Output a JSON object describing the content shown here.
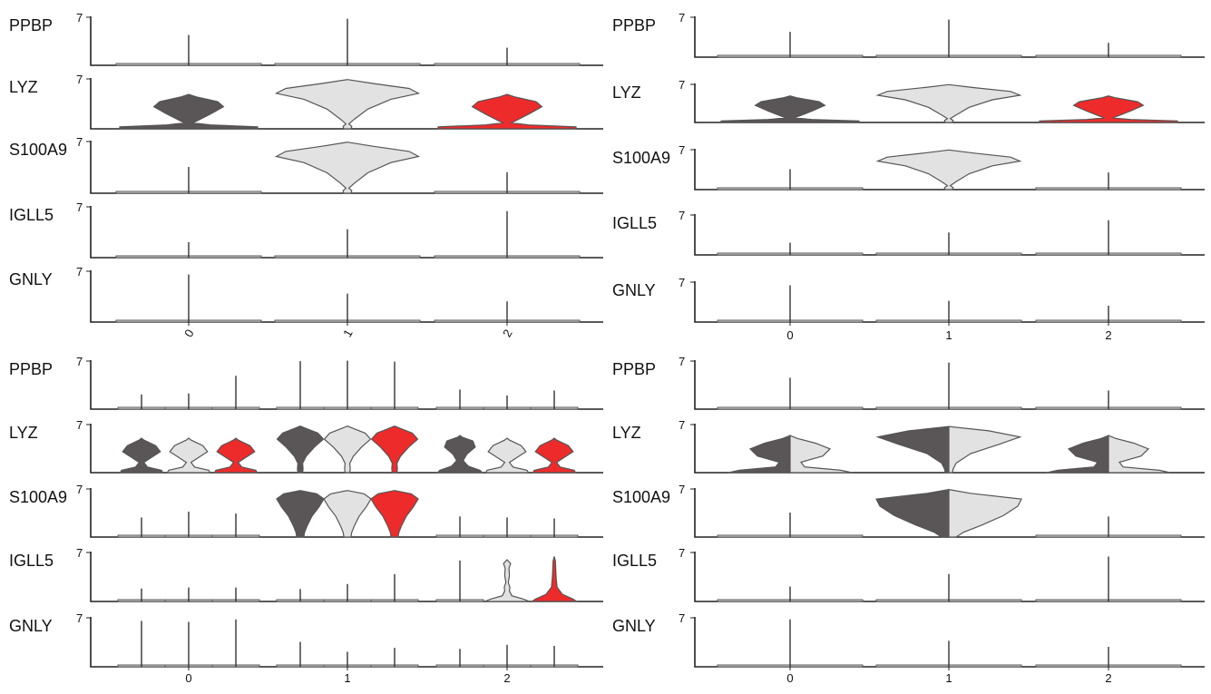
{
  "colors": {
    "group_a": "#5a5557",
    "group_b": "#e2e2e2",
    "group_c": "#ee2b2b"
  },
  "chart_data": [
    {
      "type": "violin",
      "genes": [
        "PPBP",
        "LYZ",
        "S100A9",
        "IGLL5",
        "GNLY"
      ],
      "categories": [
        "0",
        "1",
        "2"
      ],
      "x_tick_rotation": "rotated",
      "ymax_label": "7",
      "split": false,
      "violins": {
        "PPBP": {
          "0": {
            "mode": "spike",
            "h": 0.62
          },
          "1": {
            "mode": "spike",
            "h": 0.95
          },
          "2": {
            "mode": "spike",
            "h": 0.36
          }
        },
        "LYZ": {
          "0": {
            "mode": "low",
            "color": "group_a"
          },
          "1": {
            "mode": "high",
            "color": "group_b"
          },
          "2": {
            "mode": "low",
            "color": "group_c"
          }
        },
        "S100A9": {
          "0": {
            "mode": "spike",
            "h": 0.5
          },
          "1": {
            "mode": "high",
            "color": "group_b"
          },
          "2": {
            "mode": "spike",
            "h": 0.4
          }
        },
        "IGLL5": {
          "0": {
            "mode": "spike",
            "h": 0.3
          },
          "1": {
            "mode": "spike",
            "h": 0.55
          },
          "2": {
            "mode": "spike",
            "h": 0.9
          }
        },
        "GNLY": {
          "0": {
            "mode": "spike",
            "h": 0.92
          },
          "1": {
            "mode": "spike",
            "h": 0.55
          },
          "2": {
            "mode": "spike",
            "h": 0.4
          }
        }
      }
    },
    {
      "type": "violin",
      "genes": [
        "PPBP",
        "LYZ",
        "S100A9",
        "IGLL5",
        "GNLY"
      ],
      "categories": [
        "0",
        "1",
        "2"
      ],
      "x_tick_rotation": "none",
      "ymax_label": "7",
      "split": false,
      "violins": {
        "PPBP": {
          "0": {
            "mode": "spike",
            "h": 0.62
          },
          "1": {
            "mode": "spike",
            "h": 0.92
          },
          "2": {
            "mode": "spike",
            "h": 0.35
          }
        },
        "LYZ": {
          "0": {
            "mode": "low",
            "color": "group_a"
          },
          "1": {
            "mode": "high",
            "color": "group_b"
          },
          "2": {
            "mode": "low",
            "color": "group_c"
          }
        },
        "S100A9": {
          "0": {
            "mode": "spike",
            "h": 0.5
          },
          "1": {
            "mode": "high",
            "color": "group_b"
          },
          "2": {
            "mode": "spike",
            "h": 0.42
          }
        },
        "IGLL5": {
          "0": {
            "mode": "spike",
            "h": 0.3
          },
          "1": {
            "mode": "spike",
            "h": 0.55
          },
          "2": {
            "mode": "spike",
            "h": 0.85
          }
        },
        "GNLY": {
          "0": {
            "mode": "spike",
            "h": 0.9
          },
          "1": {
            "mode": "spike",
            "h": 0.52
          },
          "2": {
            "mode": "spike",
            "h": 0.4
          }
        }
      }
    },
    {
      "type": "violin",
      "genes": [
        "PPBP",
        "LYZ",
        "S100A9",
        "IGLL5",
        "GNLY"
      ],
      "categories": [
        "0",
        "1",
        "2"
      ],
      "x_tick_rotation": "none",
      "ymax_label": "7",
      "split": false,
      "dodge": true,
      "violins": {
        "PPBP": {
          "0": [
            {
              "mode": "spike",
              "h": 0.3
            },
            {
              "mode": "spike",
              "h": 0.32
            },
            {
              "mode": "spike",
              "h": 0.68
            }
          ],
          "1": [
            {
              "mode": "spike",
              "h": 0.98
            },
            {
              "mode": "spike",
              "h": 0.99
            },
            {
              "mode": "spike",
              "h": 0.97
            }
          ],
          "2": [
            {
              "mode": "spike",
              "h": 0.4
            },
            {
              "mode": "spike",
              "h": 0.28
            },
            {
              "mode": "spike",
              "h": 0.38
            }
          ]
        },
        "LYZ": {
          "0": [
            {
              "mode": "dlow",
              "color": "group_a"
            },
            {
              "mode": "dlow",
              "color": "group_b"
            },
            {
              "mode": "dlow",
              "color": "group_c"
            }
          ],
          "1": [
            {
              "mode": "dhigh",
              "color": "group_a"
            },
            {
              "mode": "dhigh",
              "color": "group_b"
            },
            {
              "mode": "dhigh",
              "color": "group_c"
            }
          ],
          "2": [
            {
              "mode": "dmid",
              "color": "group_a"
            },
            {
              "mode": "dlow",
              "color": "group_b"
            },
            {
              "mode": "dlow",
              "color": "group_c"
            }
          ]
        },
        "S100A9": {
          "0": [
            {
              "mode": "spike",
              "h": 0.4
            },
            {
              "mode": "spike",
              "h": 0.52
            },
            {
              "mode": "spike",
              "h": 0.48
            }
          ],
          "1": [
            {
              "mode": "dbig",
              "color": "group_a"
            },
            {
              "mode": "dbig",
              "color": "group_b"
            },
            {
              "mode": "dbig",
              "color": "group_c"
            }
          ],
          "2": [
            {
              "mode": "spike",
              "h": 0.42
            },
            {
              "mode": "spike",
              "h": 0.4
            },
            {
              "mode": "spike",
              "h": 0.38
            }
          ]
        },
        "IGLL5": {
          "0": [
            {
              "mode": "spike",
              "h": 0.26
            },
            {
              "mode": "spike",
              "h": 0.28
            },
            {
              "mode": "spike",
              "h": 0.28
            }
          ],
          "1": [
            {
              "mode": "spike",
              "h": 0.25
            },
            {
              "mode": "spike",
              "h": 0.35
            },
            {
              "mode": "spike",
              "h": 0.55
            }
          ],
          "2": [
            {
              "mode": "spike",
              "h": 0.82
            },
            {
              "mode": "digll5",
              "color": "group_b"
            },
            {
              "mode": "dtall",
              "color": "group_c"
            }
          ]
        },
        "GNLY": {
          "0": [
            {
              "mode": "spike",
              "h": 0.92
            },
            {
              "mode": "spike",
              "h": 0.9
            },
            {
              "mode": "spike",
              "h": 0.95
            }
          ],
          "1": [
            {
              "mode": "spike",
              "h": 0.5
            },
            {
              "mode": "spike",
              "h": 0.3
            },
            {
              "mode": "spike",
              "h": 0.38
            }
          ],
          "2": [
            {
              "mode": "spike",
              "h": 0.36
            },
            {
              "mode": "spike",
              "h": 0.44
            },
            {
              "mode": "spike",
              "h": 0.42
            }
          ]
        }
      }
    },
    {
      "type": "violin",
      "genes": [
        "PPBP",
        "LYZ",
        "S100A9",
        "IGLL5",
        "GNLY"
      ],
      "categories": [
        "0",
        "1",
        "2"
      ],
      "x_tick_rotation": "none",
      "ymax_label": "7",
      "split": true,
      "violins": {
        "PPBP": {
          "0": {
            "mode": "spike",
            "h": 0.64
          },
          "1": {
            "mode": "spike",
            "h": 0.95
          },
          "2": {
            "mode": "spike",
            "h": 0.38
          }
        },
        "LYZ": {
          "0": {
            "mode": "splitlow"
          },
          "1": {
            "mode": "splithigh"
          },
          "2": {
            "mode": "splitlow"
          }
        },
        "S100A9": {
          "0": {
            "mode": "spike",
            "h": 0.5
          },
          "1": {
            "mode": "splitbig"
          },
          "2": {
            "mode": "spike",
            "h": 0.42
          }
        },
        "IGLL5": {
          "0": {
            "mode": "spike",
            "h": 0.3
          },
          "1": {
            "mode": "spike",
            "h": 0.55
          },
          "2": {
            "mode": "spike",
            "h": 0.9
          }
        },
        "GNLY": {
          "0": {
            "mode": "spike",
            "h": 0.95
          },
          "1": {
            "mode": "spike",
            "h": 0.52
          },
          "2": {
            "mode": "spike",
            "h": 0.4
          }
        }
      }
    }
  ]
}
